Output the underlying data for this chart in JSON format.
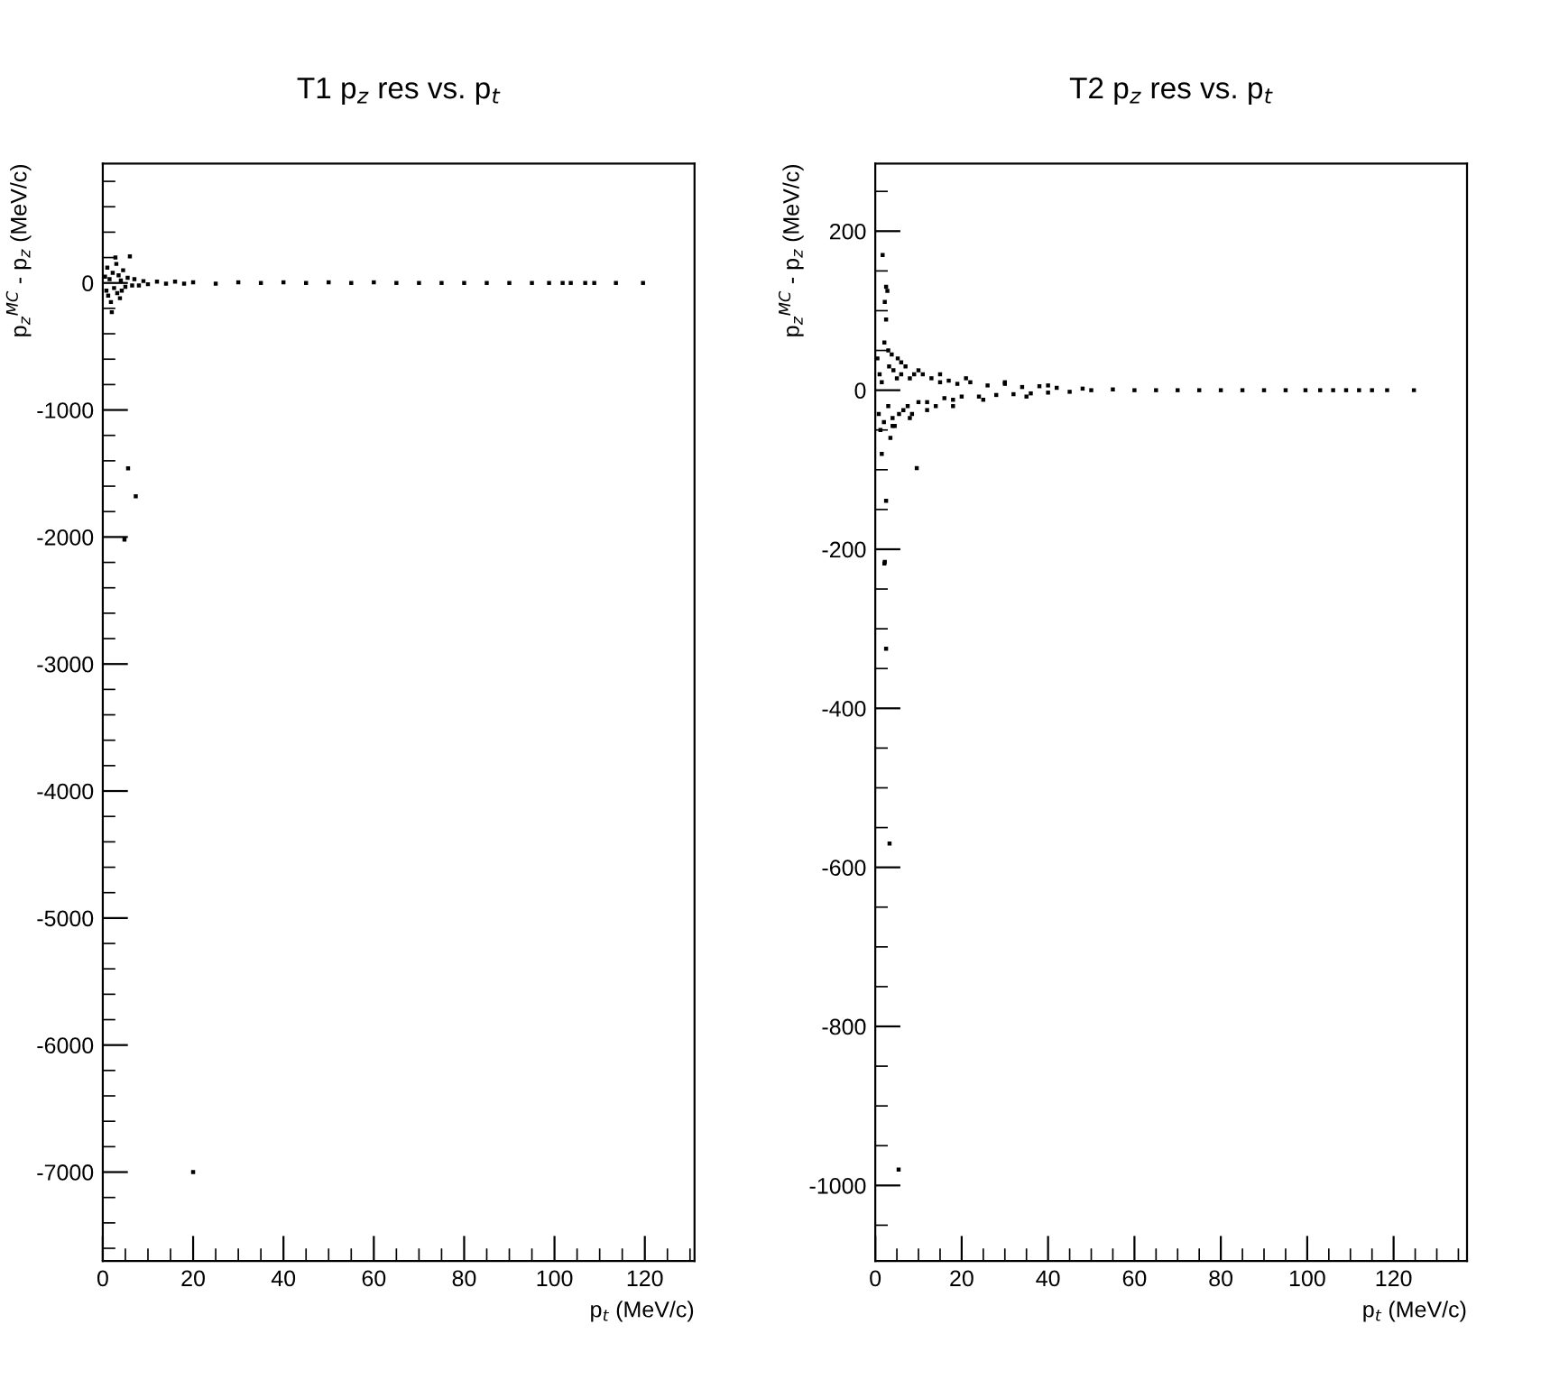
{
  "chart_data": [
    {
      "type": "scatter",
      "title": "T1 p$_{z}$ res vs. p$_{t}$",
      "xlabel": "p$_{t}$ (MeV/c)",
      "ylabel": "p$_{z}$$^{MC}$ - p$_{z}$ (MeV/c)",
      "marker": "square",
      "grid": false,
      "color": "#000000",
      "xlim": [
        0,
        131
      ],
      "ylim": [
        -7700,
        940
      ],
      "xticks": [
        0,
        20,
        40,
        60,
        80,
        100,
        120
      ],
      "yticks": [
        -7000,
        -6000,
        -5000,
        -4000,
        -3000,
        -2000,
        -1000,
        0
      ],
      "x": [
        0.5,
        0.8,
        1,
        1.2,
        1.5,
        1.8,
        2,
        2.2,
        2.5,
        2.8,
        3,
        3.2,
        3.5,
        3.8,
        4,
        4.2,
        4.5,
        5,
        5.5,
        6,
        6.5,
        7,
        8,
        9,
        10,
        12,
        14,
        16,
        18,
        20,
        25,
        30,
        35,
        40,
        45,
        50,
        55,
        60,
        65,
        70,
        75,
        80,
        85,
        90,
        95,
        98.8,
        101.8,
        103.6,
        106.8,
        108.8,
        113.6,
        119.6,
        5.6,
        7.3,
        4.8,
        20
      ],
      "values": [
        50,
        -60,
        120,
        -100,
        30,
        -150,
        -230,
        80,
        -40,
        200,
        150,
        -80,
        60,
        -120,
        20,
        -60,
        100,
        -30,
        40,
        210,
        -20,
        30,
        -20,
        15,
        -10,
        10,
        -5,
        10,
        -5,
        5,
        -5,
        5,
        0,
        5,
        0,
        5,
        0,
        5,
        0,
        0,
        0,
        0,
        0,
        0,
        0,
        0,
        0,
        0,
        0,
        0,
        0,
        0,
        -1460,
        -1680,
        -2020,
        -7000
      ]
    },
    {
      "type": "scatter",
      "title": "T2 p$_{z}$ res vs. p$_{t}$",
      "xlabel": "p$_{t}$ (MeV/c)",
      "ylabel": "p$_{z}$$^{MC}$ - p$_{z}$ (MeV/c)",
      "marker": "square",
      "grid": false,
      "color": "#000000",
      "xlim": [
        0,
        137
      ],
      "ylim": [
        -1095,
        285
      ],
      "xticks": [
        0,
        20,
        40,
        60,
        80,
        100,
        120
      ],
      "yticks": [
        -1000,
        -800,
        -600,
        -400,
        -200,
        0,
        200
      ],
      "x": [
        0.5,
        0.8,
        1,
        1.2,
        1.5,
        1.7,
        2,
        2.2,
        2.5,
        2.5,
        2.8,
        3,
        3.2,
        3.5,
        3.8,
        4,
        4.2,
        4.5,
        5,
        5.2,
        5.5,
        6,
        6.5,
        7,
        7.5,
        8,
        8.5,
        9,
        9.6,
        10,
        11,
        12,
        13,
        14,
        15,
        16,
        17,
        18,
        19,
        20,
        22,
        24,
        26,
        28,
        30,
        32,
        34,
        36,
        38,
        40,
        42,
        45,
        48,
        50,
        55,
        60,
        65,
        70,
        75,
        80,
        85,
        90,
        95,
        99.6,
        103,
        106,
        109,
        112,
        115,
        118.5,
        124.7,
        2.1,
        2.5,
        3.3,
        5.4,
        2.5,
        2.2,
        2.1,
        1.5,
        3,
        4,
        6,
        8,
        10,
        12,
        15,
        18,
        21,
        25,
        30,
        35,
        40
      ],
      "values": [
        40,
        -30,
        20,
        -50,
        10,
        170,
        -40,
        111,
        130,
        89,
        125,
        -20,
        30,
        -60,
        45,
        -35,
        25,
        -45,
        15,
        40,
        -30,
        20,
        -25,
        30,
        -20,
        15,
        -30,
        20,
        -98,
        -15,
        20,
        -15,
        15,
        -20,
        10,
        -10,
        12,
        -12,
        8,
        -8,
        10,
        -8,
        6,
        -6,
        8,
        -5,
        4,
        -4,
        5,
        -3,
        3,
        -2,
        2,
        0,
        1,
        0,
        0,
        0,
        0,
        0,
        0,
        0,
        0,
        0,
        0,
        0,
        0,
        0,
        0,
        0,
        0,
        -218,
        -325,
        -570,
        -980,
        -139,
        -216,
        60,
        -80,
        50,
        -45,
        35,
        -35,
        25,
        -25,
        20,
        -20,
        15,
        -12,
        10,
        -8,
        6
      ]
    }
  ]
}
